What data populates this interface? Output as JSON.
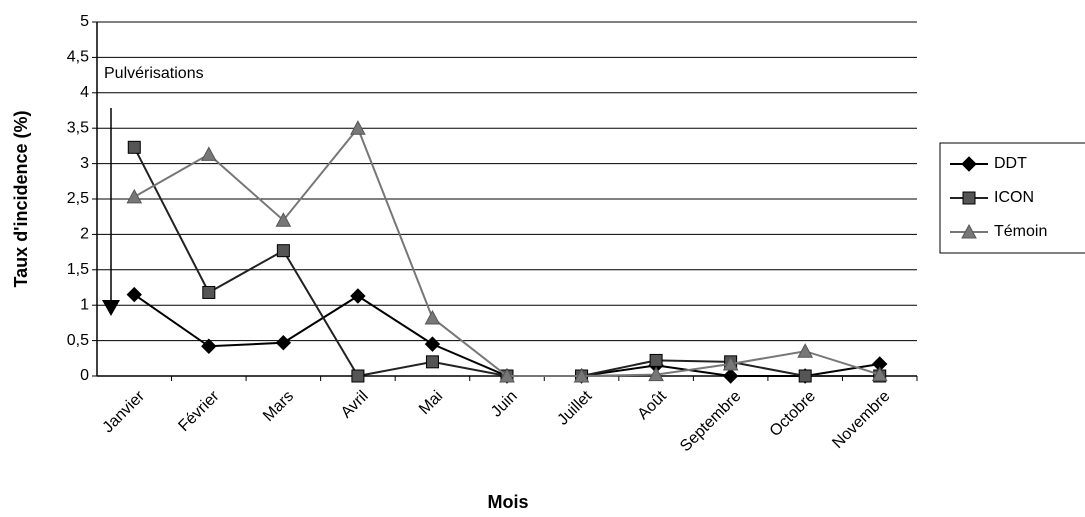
{
  "chart_data": {
    "type": "line",
    "annotation": "Pulvérisations",
    "xlabel": "Mois",
    "ylabel": "Taux d'incidence (%)",
    "categories": [
      "Janvier",
      "Février",
      "Mars",
      "Avril",
      "Mai",
      "Juin",
      "Juillet",
      "Août",
      "Septembre",
      "Octobre",
      "Novembre"
    ],
    "series": [
      {
        "name": "DDT",
        "color": "#000000",
        "marker": "diamond",
        "values": [
          1.15,
          0.42,
          0.47,
          1.13,
          0.45,
          0,
          0,
          0.15,
          0,
          0,
          0.17
        ]
      },
      {
        "name": "ICON",
        "color": "#222222",
        "marker": "square",
        "values": [
          3.23,
          1.18,
          1.77,
          0,
          0.2,
          0,
          0,
          0.22,
          0.2,
          0,
          0
        ]
      },
      {
        "name": "Témoin",
        "color": "#777777",
        "marker": "triangle",
        "values": [
          2.53,
          3.13,
          2.2,
          3.5,
          0.82,
          0,
          0,
          0.02,
          0.17,
          0.35,
          0.02
        ]
      }
    ],
    "ylim": [
      0,
      5
    ],
    "yticks": [
      0,
      {
        "value": 0.5,
        "label": "0,5"
      },
      1,
      {
        "value": 1.5,
        "label": "1,5"
      },
      2,
      {
        "value": 2.5,
        "label": "2,5"
      },
      3,
      {
        "value": 3.5,
        "label": "3,5"
      },
      4,
      {
        "value": 4.5,
        "label": "4,5"
      },
      5
    ],
    "grid": true,
    "legend": "right"
  }
}
